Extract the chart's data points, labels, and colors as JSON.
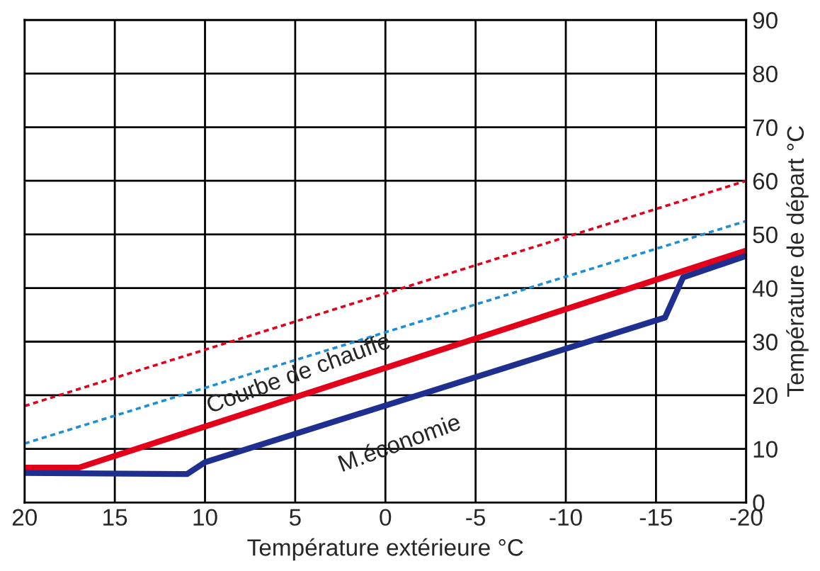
{
  "chart_data": {
    "type": "line",
    "xlabel": "Température extérieure °C",
    "ylabel": "Température de départ °C",
    "xlim": [
      20,
      -20
    ],
    "xticks": [
      20,
      15,
      10,
      5,
      0,
      -5,
      -10,
      -15,
      -20
    ],
    "ylim": [
      0,
      90
    ],
    "yticks": [
      0,
      10,
      20,
      30,
      40,
      50,
      60,
      70,
      80,
      90
    ],
    "grid": true,
    "series": [
      {
        "color": "#e3001b",
        "line_style": "dotted",
        "x": [
          20,
          -20
        ],
        "values": [
          18,
          60
        ]
      },
      {
        "color": "#1a8fd6",
        "line_style": "dotted",
        "x": [
          20,
          -20
        ],
        "values": [
          11,
          52.5
        ]
      },
      {
        "color": "#e3001b",
        "line_style": "solid",
        "x": [
          20,
          17,
          -20
        ],
        "values": [
          6.5,
          6.5,
          47
        ]
      },
      {
        "color": "#1f2f8f",
        "line_style": "solid",
        "x": [
          20,
          11,
          10,
          -15.5,
          -16.5,
          -20
        ],
        "values": [
          5.5,
          5.3,
          7.5,
          34.5,
          42,
          46
        ]
      }
    ],
    "annotations": [
      "Courbe de chauffe",
      "M.économie"
    ]
  }
}
